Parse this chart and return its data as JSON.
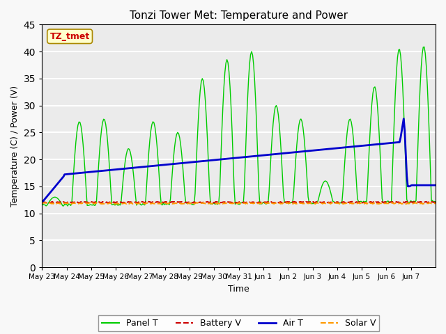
{
  "title": "Tonzi Tower Met: Temperature and Power",
  "xlabel": "Time",
  "ylabel": "Temperature (C) / Power (V)",
  "ylim": [
    0,
    45
  ],
  "yticks": [
    0,
    5,
    10,
    15,
    20,
    25,
    30,
    35,
    40,
    45
  ],
  "xtick_labels": [
    "May 23",
    "May 24",
    "May 25",
    "May 26",
    "May 27",
    "May 28",
    "May 29",
    "May 30",
    "May 31",
    "Jun 1",
    "Jun 2",
    "Jun 3",
    "Jun 4",
    "Jun 5",
    "Jun 6",
    "Jun 7"
  ],
  "annotation_text": "TZ_tmet",
  "annotation_color": "#cc0000",
  "annotation_bg": "#ffffcc",
  "annotation_edge": "#aa8800",
  "plot_bg": "#ebebeb",
  "fig_bg": "#f8f8f8",
  "panel_t_color": "#00cc00",
  "battery_v_color": "#cc0000",
  "air_t_color": "#0000cc",
  "solar_v_color": "#ff9900",
  "grid_color": "#ffffff",
  "legend_labels": [
    "Panel T",
    "Battery V",
    "Air T",
    "Solar V"
  ],
  "n_days": 16,
  "hours_per_day": 24
}
